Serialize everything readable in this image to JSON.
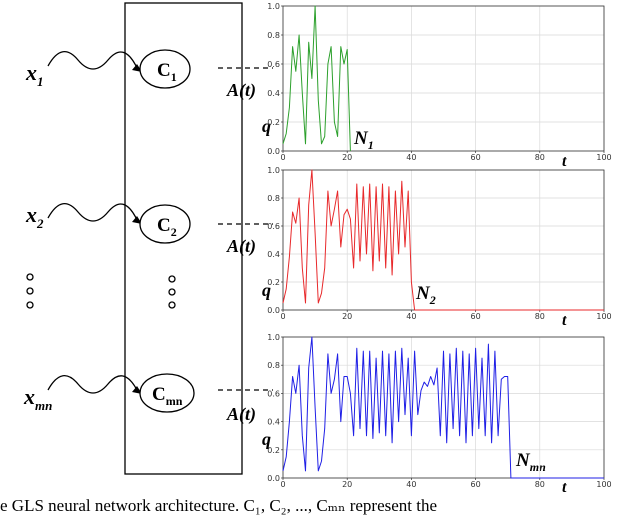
{
  "network": {
    "inputs": [
      {
        "label": "x",
        "sub": "1"
      },
      {
        "label": "x",
        "sub": "2"
      },
      {
        "label": "x",
        "sub": "mn"
      }
    ],
    "neurons": [
      {
        "label": "C",
        "sub": "1"
      },
      {
        "label": "C",
        "sub": "2"
      },
      {
        "label": "C",
        "sub": "mn"
      }
    ],
    "ellipsis": "ooo"
  },
  "plots": {
    "activity_label": "A(t)",
    "threshold_label": "q",
    "time_label": "t",
    "endpoint_labels": [
      {
        "label": "N",
        "sub": "1"
      },
      {
        "label": "N",
        "sub": "2"
      },
      {
        "label": "N",
        "sub": "mn"
      }
    ]
  },
  "caption": "e GLS neural network architecture. C₁, C₂, ..., Cₘₙ represent the",
  "chart_data": [
    {
      "type": "line",
      "color": "#2ca02c",
      "x_ticks": [
        0,
        20,
        40,
        60,
        80,
        100
      ],
      "y_ticks": [
        "0.0",
        "0.2",
        "0.4",
        "0.6",
        "0.8",
        "1.0"
      ],
      "xlim": [
        0,
        100
      ],
      "ylim": [
        0,
        1
      ],
      "x": [
        0,
        1,
        2,
        3,
        4,
        5,
        6,
        7,
        8,
        9,
        10,
        11,
        12,
        13,
        14,
        15,
        16,
        17,
        18,
        19,
        20,
        21
      ],
      "y": [
        0.05,
        0.12,
        0.3,
        0.72,
        0.55,
        0.8,
        0.4,
        0.05,
        0.75,
        0.5,
        1.0,
        0.35,
        0.05,
        0.1,
        0.6,
        0.72,
        0.2,
        0.1,
        0.72,
        0.6,
        0.7,
        0.0
      ]
    },
    {
      "type": "line",
      "color": "#e8292b",
      "x_ticks": [
        0,
        20,
        40,
        60,
        80,
        100
      ],
      "y_ticks": [
        "0.0",
        "0.2",
        "0.4",
        "0.6",
        "0.8",
        "1.0"
      ],
      "xlim": [
        0,
        100
      ],
      "ylim": [
        0,
        1
      ],
      "x": [
        0,
        1,
        2,
        3,
        4,
        5,
        6,
        7,
        8,
        9,
        10,
        11,
        12,
        13,
        14,
        15,
        16,
        17,
        18,
        19,
        20,
        21,
        22,
        23,
        24,
        25,
        26,
        27,
        28,
        29,
        30,
        31,
        32,
        33,
        34,
        35,
        36,
        37,
        38,
        39,
        40,
        41,
        100
      ],
      "y": [
        0.05,
        0.15,
        0.38,
        0.7,
        0.62,
        0.8,
        0.3,
        0.05,
        0.75,
        1.0,
        0.55,
        0.05,
        0.12,
        0.3,
        0.85,
        0.6,
        0.72,
        0.85,
        0.45,
        0.68,
        0.72,
        0.65,
        0.3,
        0.9,
        0.35,
        0.88,
        0.4,
        0.9,
        0.28,
        0.88,
        0.35,
        0.9,
        0.3,
        0.88,
        0.25,
        0.85,
        0.4,
        0.92,
        0.45,
        0.85,
        0.2,
        0.0,
        0.0
      ]
    },
    {
      "type": "line",
      "color": "#1f1fe6",
      "x_ticks": [
        0,
        20,
        40,
        60,
        80,
        100
      ],
      "y_ticks": [
        "0.0",
        "0.2",
        "0.4",
        "0.6",
        "0.8",
        "1.0"
      ],
      "xlim": [
        0,
        100
      ],
      "ylim": [
        0,
        1
      ],
      "x": [
        0,
        1,
        2,
        3,
        4,
        5,
        6,
        7,
        8,
        9,
        10,
        11,
        12,
        13,
        14,
        15,
        16,
        17,
        18,
        19,
        20,
        21,
        22,
        23,
        24,
        25,
        26,
        27,
        28,
        29,
        30,
        31,
        32,
        33,
        34,
        35,
        36,
        37,
        38,
        39,
        40,
        41,
        42,
        43,
        44,
        45,
        46,
        47,
        48,
        49,
        50,
        51,
        52,
        53,
        54,
        55,
        56,
        57,
        58,
        59,
        60,
        61,
        62,
        63,
        64,
        65,
        66,
        67,
        68,
        69,
        70,
        71,
        72,
        100
      ],
      "y": [
        0.05,
        0.15,
        0.4,
        0.72,
        0.6,
        0.8,
        0.3,
        0.05,
        0.78,
        1.0,
        0.5,
        0.05,
        0.12,
        0.35,
        0.88,
        0.6,
        0.7,
        0.88,
        0.4,
        0.72,
        0.72,
        0.6,
        0.3,
        0.92,
        0.35,
        0.9,
        0.3,
        0.9,
        0.28,
        0.85,
        0.32,
        0.9,
        0.3,
        0.88,
        0.25,
        0.9,
        0.4,
        0.92,
        0.45,
        0.85,
        0.3,
        0.9,
        0.45,
        0.62,
        0.68,
        0.65,
        0.72,
        0.66,
        0.78,
        0.3,
        0.9,
        0.25,
        0.88,
        0.35,
        0.92,
        0.3,
        0.9,
        0.25,
        0.88,
        0.3,
        0.92,
        0.35,
        0.85,
        0.3,
        0.95,
        0.25,
        0.9,
        0.3,
        0.7,
        0.72,
        0.72,
        0.0,
        0.0,
        0.0
      ]
    }
  ]
}
